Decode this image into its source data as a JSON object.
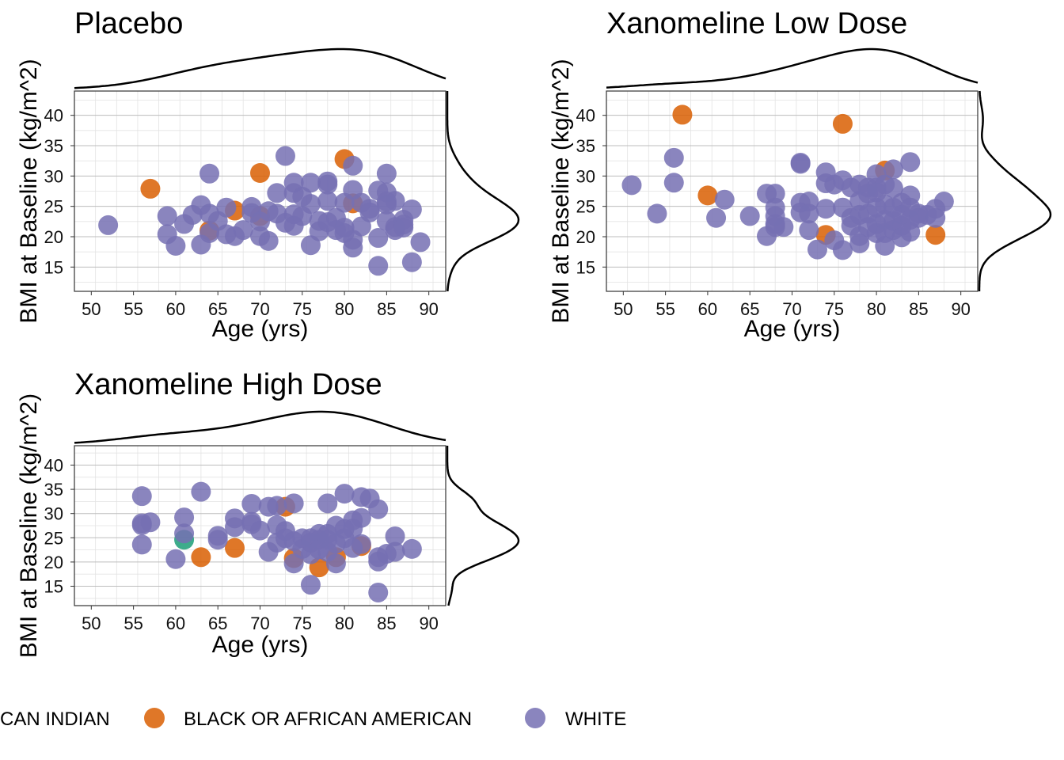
{
  "colors": {
    "american_indian": "#1b9e77",
    "black": "#d95f02",
    "white": "#7570b3"
  },
  "legend": [
    {
      "label": "AMERICAN INDIAN OR ALASKA NATIVE",
      "shown_text": "CAN INDIAN",
      "color": "#1b9e77"
    },
    {
      "label": "BLACK OR AFRICAN AMERICAN",
      "color": "#d95f02"
    },
    {
      "label": "WHITE",
      "color": "#7570b3"
    }
  ],
  "chart_data": [
    {
      "type": "scatter",
      "title": "Placebo",
      "xlabel": "Age (yrs)",
      "ylabel": "BMI at Baseline (kg/m^2)",
      "xlim": [
        48,
        92
      ],
      "ylim": [
        11,
        44
      ],
      "xticks": [
        50,
        55,
        60,
        65,
        70,
        75,
        80,
        85,
        90
      ],
      "yticks": [
        15,
        20,
        25,
        30,
        35,
        40
      ],
      "grid": true,
      "marginal": "density",
      "series": [
        {
          "name": "BLACK OR AFRICAN AMERICAN",
          "points": [
            [
              57,
              27.9
            ],
            [
              64,
              21.0
            ],
            [
              67,
              24.3
            ],
            [
              70,
              30.5
            ],
            [
              70,
              23.4
            ],
            [
              80,
              32.8
            ],
            [
              81,
              25.5
            ]
          ]
        },
        {
          "name": "WHITE",
          "points": [
            [
              52,
              21.9
            ],
            [
              59,
              23.4
            ],
            [
              59,
              20.4
            ],
            [
              60,
              18.5
            ],
            [
              61,
              22.1
            ],
            [
              62,
              23.6
            ],
            [
              63,
              25.2
            ],
            [
              63,
              18.7
            ],
            [
              64,
              30.4
            ],
            [
              64,
              23.8
            ],
            [
              64,
              20.6
            ],
            [
              65,
              22.6
            ],
            [
              66,
              24.8
            ],
            [
              66,
              20.4
            ],
            [
              67,
              20.1
            ],
            [
              68,
              21.1
            ],
            [
              69,
              24.9
            ],
            [
              69,
              23.9
            ],
            [
              70,
              22.5
            ],
            [
              70,
              20.1
            ],
            [
              71,
              19.3
            ],
            [
              71,
              24.2
            ],
            [
              72,
              23.8
            ],
            [
              72,
              27.2
            ],
            [
              73,
              33.3
            ],
            [
              73,
              22.3
            ],
            [
              74,
              23.7
            ],
            [
              74,
              28.9
            ],
            [
              74,
              27.2
            ],
            [
              74,
              21.8
            ],
            [
              75,
              26.6
            ],
            [
              75,
              23.4
            ],
            [
              76,
              28.9
            ],
            [
              76,
              25.4
            ],
            [
              76,
              18.6
            ],
            [
              77,
              22.6
            ],
            [
              77,
              20.9
            ],
            [
              78,
              29.1
            ],
            [
              78,
              28.6
            ],
            [
              78,
              25.9
            ],
            [
              78,
              22.4
            ],
            [
              79,
              23.1
            ],
            [
              79,
              21.1
            ],
            [
              80,
              25.6
            ],
            [
              80,
              21.5
            ],
            [
              80,
              20.6
            ],
            [
              81,
              31.7
            ],
            [
              81,
              27.7
            ],
            [
              81,
              19.5
            ],
            [
              81,
              18.2
            ],
            [
              82,
              25.6
            ],
            [
              82,
              21.7
            ],
            [
              83,
              24.6
            ],
            [
              83,
              24.0
            ],
            [
              84,
              27.6
            ],
            [
              84,
              19.8
            ],
            [
              84,
              15.2
            ],
            [
              85,
              30.4
            ],
            [
              85,
              27.3
            ],
            [
              85,
              25.3
            ],
            [
              85,
              25.8
            ],
            [
              85,
              22.6
            ],
            [
              86,
              25.9
            ],
            [
              86,
              21.6
            ],
            [
              86,
              21.1
            ],
            [
              87,
              22.8
            ],
            [
              87,
              22.0
            ],
            [
              87,
              21.5
            ],
            [
              88,
              24.5
            ],
            [
              88,
              15.8
            ],
            [
              89,
              19.1
            ]
          ]
        }
      ]
    },
    {
      "type": "scatter",
      "title": "Xanomeline Low Dose",
      "xlabel": "Age (yrs)",
      "ylabel": "BMI at Baseline (kg/m^2)",
      "xlim": [
        48,
        92
      ],
      "ylim": [
        11,
        44
      ],
      "xticks": [
        50,
        55,
        60,
        65,
        70,
        75,
        80,
        85,
        90
      ],
      "yticks": [
        15,
        20,
        25,
        30,
        35,
        40
      ],
      "grid": true,
      "marginal": "density",
      "series": [
        {
          "name": "BLACK OR AFRICAN AMERICAN",
          "points": [
            [
              57,
              40.1
            ],
            [
              60,
              26.8
            ],
            [
              74,
              20.3
            ],
            [
              76,
              38.6
            ],
            [
              81,
              30.9
            ],
            [
              87,
              20.3
            ]
          ]
        },
        {
          "name": "WHITE",
          "points": [
            [
              51,
              28.5
            ],
            [
              54,
              23.8
            ],
            [
              56,
              33.0
            ],
            [
              56,
              28.9
            ],
            [
              61,
              23.1
            ],
            [
              62,
              26.1
            ],
            [
              65,
              23.4
            ],
            [
              67,
              27.1
            ],
            [
              67,
              20.1
            ],
            [
              68,
              27.1
            ],
            [
              68,
              24.8
            ],
            [
              68,
              23.4
            ],
            [
              68,
              22.1
            ],
            [
              68,
              21.6
            ],
            [
              69,
              21.6
            ],
            [
              71,
              32.2
            ],
            [
              71,
              32.0
            ],
            [
              71,
              25.6
            ],
            [
              71,
              24.0
            ],
            [
              72,
              25.8
            ],
            [
              72,
              23.8
            ],
            [
              72,
              21.1
            ],
            [
              73,
              17.9
            ],
            [
              74,
              30.6
            ],
            [
              74,
              28.8
            ],
            [
              74,
              24.6
            ],
            [
              75,
              28.6
            ],
            [
              75,
              19.4
            ],
            [
              76,
              29.3
            ],
            [
              76,
              24.8
            ],
            [
              76,
              17.8
            ],
            [
              77,
              28.1
            ],
            [
              77,
              23.1
            ],
            [
              77,
              21.8
            ],
            [
              78,
              28.6
            ],
            [
              78,
              25.9
            ],
            [
              78,
              23.6
            ],
            [
              78,
              20.1
            ],
            [
              78,
              18.9
            ],
            [
              79,
              28.1
            ],
            [
              79,
              27.1
            ],
            [
              79,
              23.8
            ],
            [
              79,
              21.6
            ],
            [
              80,
              30.3
            ],
            [
              80,
              28.1
            ],
            [
              80,
              27.3
            ],
            [
              80,
              24.8
            ],
            [
              80,
              22.1
            ],
            [
              80,
              20.6
            ],
            [
              81,
              28.6
            ],
            [
              81,
              25.3
            ],
            [
              81,
              22.8
            ],
            [
              81,
              20.6
            ],
            [
              81,
              18.5
            ],
            [
              82,
              31.1
            ],
            [
              82,
              28.0
            ],
            [
              82,
              24.8
            ],
            [
              82,
              22.6
            ],
            [
              82,
              21.1
            ],
            [
              83,
              25.6
            ],
            [
              83,
              23.6
            ],
            [
              83,
              21.8
            ],
            [
              83,
              19.9
            ],
            [
              84,
              32.3
            ],
            [
              84,
              26.8
            ],
            [
              84,
              24.8
            ],
            [
              84,
              22.8
            ],
            [
              84,
              20.8
            ],
            [
              85,
              23.8
            ],
            [
              85,
              23.1
            ],
            [
              86,
              23.6
            ],
            [
              87,
              24.6
            ],
            [
              87,
              23.1
            ],
            [
              88,
              25.8
            ]
          ]
        }
      ]
    },
    {
      "type": "scatter",
      "title": "Xanomeline High Dose",
      "xlabel": "Age (yrs)",
      "ylabel": "BMI at Baseline (kg/m^2)",
      "xlim": [
        48,
        92
      ],
      "ylim": [
        11,
        44
      ],
      "xticks": [
        50,
        55,
        60,
        65,
        70,
        75,
        80,
        85,
        90
      ],
      "yticks": [
        15,
        20,
        25,
        30,
        35,
        40
      ],
      "grid": true,
      "marginal": "density",
      "series": [
        {
          "name": "AMERICAN INDIAN OR ALASKA NATIVE",
          "points": [
            [
              61,
              24.6
            ]
          ]
        },
        {
          "name": "BLACK OR AFRICAN AMERICAN",
          "points": [
            [
              63,
              21.0
            ],
            [
              67,
              22.9
            ],
            [
              73,
              31.4
            ],
            [
              74,
              20.8
            ],
            [
              77,
              18.9
            ],
            [
              79,
              21.0
            ],
            [
              82,
              23.3
            ]
          ]
        },
        {
          "name": "WHITE",
          "points": [
            [
              56,
              33.6
            ],
            [
              56,
              28.0
            ],
            [
              56,
              27.6
            ],
            [
              56,
              23.6
            ],
            [
              57,
              28.2
            ],
            [
              60,
              20.6
            ],
            [
              61,
              29.2
            ],
            [
              61,
              25.9
            ],
            [
              63,
              34.5
            ],
            [
              65,
              25.4
            ],
            [
              65,
              24.6
            ],
            [
              67,
              29.0
            ],
            [
              67,
              27.2
            ],
            [
              69,
              32.0
            ],
            [
              69,
              28.3
            ],
            [
              69,
              27.8
            ],
            [
              70,
              26.5
            ],
            [
              71,
              31.4
            ],
            [
              71,
              22.1
            ],
            [
              72,
              31.6
            ],
            [
              72,
              27.6
            ],
            [
              72,
              24.0
            ],
            [
              73,
              26.4
            ],
            [
              73,
              24.9
            ],
            [
              74,
              32.1
            ],
            [
              74,
              24.3
            ],
            [
              74,
              19.7
            ],
            [
              75,
              24.9
            ],
            [
              75,
              22.7
            ],
            [
              76,
              24.9
            ],
            [
              76,
              24.0
            ],
            [
              76,
              21.6
            ],
            [
              76,
              15.3
            ],
            [
              77,
              25.8
            ],
            [
              77,
              24.6
            ],
            [
              77,
              22.6
            ],
            [
              78,
              32.1
            ],
            [
              78,
              25.8
            ],
            [
              78,
              24.6
            ],
            [
              78,
              22.1
            ],
            [
              79,
              27.5
            ],
            [
              79,
              23.8
            ],
            [
              79,
              19.7
            ],
            [
              80,
              34.1
            ],
            [
              80,
              26.8
            ],
            [
              80,
              24.9
            ],
            [
              81,
              28.6
            ],
            [
              81,
              26.9
            ],
            [
              81,
              22.9
            ],
            [
              82,
              33.4
            ],
            [
              82,
              29.1
            ],
            [
              82,
              23.7
            ],
            [
              83,
              33.1
            ],
            [
              84,
              30.9
            ],
            [
              84,
              21.0
            ],
            [
              84,
              20.1
            ],
            [
              84,
              13.7
            ],
            [
              85,
              21.7
            ],
            [
              86,
              25.3
            ],
            [
              86,
              22.1
            ],
            [
              88,
              22.7
            ]
          ]
        }
      ]
    }
  ]
}
